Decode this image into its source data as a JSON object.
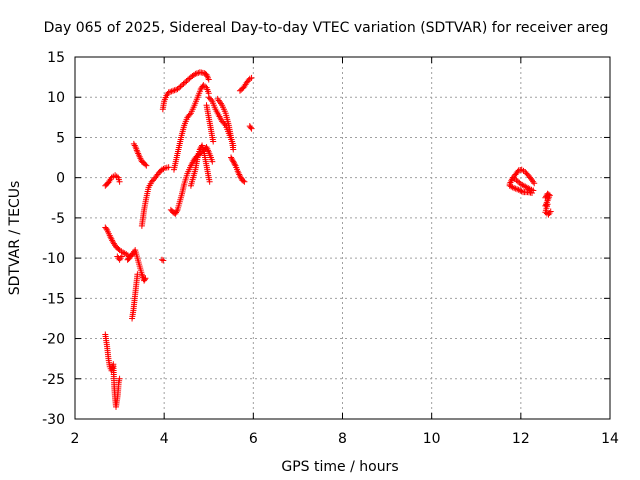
{
  "chart_data": {
    "type": "scatter",
    "title": "Day 065 of 2025, Sidereal Day-to-day VTEC variation (SDTVAR) for receiver areg",
    "xlabel": "GPS time / hours",
    "ylabel": "SDTVAR / TECUs",
    "xlim": [
      2,
      14
    ],
    "ylim": [
      -30,
      15
    ],
    "xticks": [
      "2",
      "4",
      "6",
      "8",
      "10",
      "12",
      "14"
    ],
    "yticks": [
      "15",
      "10",
      "5",
      "0",
      "-5",
      "-10",
      "-15",
      "-20",
      "-25",
      "-30"
    ],
    "grid": true,
    "marker": "plus",
    "color": "#ff0000",
    "segments": [
      {
        "points": [
          [
            2.68,
            -1.0
          ],
          [
            2.75,
            -0.6
          ],
          [
            2.82,
            0.0
          ],
          [
            2.9,
            0.3
          ],
          [
            2.97,
            0.0
          ],
          [
            3.0,
            -0.5
          ]
        ]
      },
      {
        "points": [
          [
            2.68,
            -6.2
          ],
          [
            2.72,
            -6.5
          ],
          [
            2.78,
            -7.2
          ],
          [
            2.85,
            -8.0
          ],
          [
            2.92,
            -8.6
          ],
          [
            3.0,
            -9.0
          ],
          [
            3.08,
            -9.3
          ],
          [
            3.15,
            -9.5
          ],
          [
            3.22,
            -9.8
          ],
          [
            3.28,
            -9.6
          ]
        ]
      },
      {
        "points": [
          [
            2.95,
            -9.8
          ],
          [
            3.0,
            -10.2
          ],
          [
            3.05,
            -9.8
          ]
        ]
      },
      {
        "points": [
          [
            2.68,
            -19.5
          ],
          [
            2.72,
            -21.0
          ],
          [
            2.75,
            -22.5
          ],
          [
            2.78,
            -23.5
          ],
          [
            2.82,
            -24.0
          ],
          [
            2.86,
            -23.2
          ],
          [
            2.88,
            -26.0
          ],
          [
            2.9,
            -27.5
          ],
          [
            2.92,
            -28.5
          ],
          [
            2.96,
            -27.0
          ],
          [
            2.98,
            -25.5
          ],
          [
            3.0,
            -25.0
          ]
        ]
      },
      {
        "points": [
          [
            3.18,
            -10.2
          ],
          [
            3.22,
            -10.0
          ],
          [
            3.3,
            -9.4
          ],
          [
            3.35,
            -9.0
          ],
          [
            3.4,
            -10.0
          ],
          [
            3.45,
            -11.0
          ],
          [
            3.5,
            -12.0
          ],
          [
            3.55,
            -12.8
          ],
          [
            3.58,
            -12.5
          ]
        ]
      },
      {
        "points": [
          [
            3.28,
            -17.5
          ],
          [
            3.31,
            -16.5
          ],
          [
            3.34,
            -15.0
          ],
          [
            3.37,
            -13.5
          ],
          [
            3.4,
            -12.0
          ]
        ]
      },
      {
        "points": [
          [
            3.32,
            4.2
          ],
          [
            3.36,
            3.8
          ],
          [
            3.4,
            3.2
          ],
          [
            3.45,
            2.6
          ],
          [
            3.5,
            2.0
          ],
          [
            3.55,
            1.8
          ],
          [
            3.6,
            1.5
          ]
        ]
      },
      {
        "points": [
          [
            3.5,
            -6.0
          ],
          [
            3.55,
            -4.0
          ],
          [
            3.6,
            -2.5
          ],
          [
            3.65,
            -1.2
          ],
          [
            3.72,
            -0.5
          ],
          [
            3.8,
            0.0
          ],
          [
            3.88,
            0.6
          ],
          [
            3.95,
            1.0
          ],
          [
            4.02,
            1.2
          ],
          [
            4.1,
            1.3
          ]
        ]
      },
      {
        "points": [
          [
            3.95,
            -10.2
          ],
          [
            3.98,
            -10.3
          ]
        ]
      },
      {
        "points": [
          [
            3.97,
            8.5
          ],
          [
            4.0,
            9.5
          ],
          [
            4.05,
            10.2
          ],
          [
            4.1,
            10.6
          ],
          [
            4.2,
            10.8
          ],
          [
            4.3,
            11.0
          ],
          [
            4.4,
            11.5
          ],
          [
            4.5,
            12.0
          ],
          [
            4.6,
            12.5
          ],
          [
            4.7,
            12.9
          ],
          [
            4.8,
            13.1
          ],
          [
            4.9,
            13.0
          ],
          [
            4.95,
            12.8
          ],
          [
            5.0,
            12.2
          ]
        ]
      },
      {
        "points": [
          [
            4.15,
            -4.0
          ],
          [
            4.2,
            -4.3
          ],
          [
            4.25,
            -4.5
          ],
          [
            4.3,
            -4.0
          ],
          [
            4.35,
            -3.0
          ],
          [
            4.4,
            -2.0
          ],
          [
            4.45,
            -0.8
          ],
          [
            4.52,
            0.5
          ],
          [
            4.6,
            1.5
          ],
          [
            4.68,
            2.3
          ],
          [
            4.75,
            2.8
          ],
          [
            4.82,
            3.0
          ],
          [
            4.9,
            3.5
          ],
          [
            4.95,
            3.8
          ],
          [
            5.0,
            3.2
          ],
          [
            5.05,
            2.5
          ],
          [
            5.08,
            2.0
          ]
        ]
      },
      {
        "points": [
          [
            4.22,
            1.0
          ],
          [
            4.3,
            3.0
          ],
          [
            4.38,
            5.0
          ],
          [
            4.45,
            6.5
          ],
          [
            4.52,
            7.5
          ],
          [
            4.6,
            8.0
          ],
          [
            4.68,
            9.0
          ],
          [
            4.75,
            10.0
          ],
          [
            4.82,
            11.0
          ],
          [
            4.88,
            11.5
          ],
          [
            4.95,
            11.2
          ],
          [
            5.0,
            10.5
          ]
        ]
      },
      {
        "points": [
          [
            4.95,
            9.0
          ],
          [
            5.0,
            7.5
          ],
          [
            5.05,
            6.0
          ],
          [
            5.08,
            5.0
          ],
          [
            5.1,
            4.5
          ]
        ]
      },
      {
        "points": [
          [
            4.6,
            -1.0
          ],
          [
            4.65,
            0.0
          ],
          [
            4.7,
            1.0
          ],
          [
            4.75,
            2.5
          ],
          [
            4.8,
            3.5
          ],
          [
            4.85,
            4.0
          ],
          [
            4.9,
            3.0
          ],
          [
            4.95,
            1.5
          ],
          [
            5.0,
            0.0
          ],
          [
            5.02,
            -0.5
          ]
        ]
      },
      {
        "points": [
          [
            5.0,
            10.0
          ],
          [
            5.08,
            9.5
          ],
          [
            5.15,
            8.5
          ],
          [
            5.22,
            7.8
          ],
          [
            5.3,
            7.0
          ],
          [
            5.38,
            6.5
          ],
          [
            5.45,
            5.5
          ],
          [
            5.52,
            4.5
          ],
          [
            5.55,
            3.5
          ]
        ]
      },
      {
        "points": [
          [
            5.2,
            9.8
          ],
          [
            5.3,
            9.0
          ],
          [
            5.38,
            8.0
          ],
          [
            5.45,
            6.5
          ],
          [
            5.5,
            5.0
          ],
          [
            5.55,
            4.0
          ]
        ]
      },
      {
        "points": [
          [
            5.5,
            2.5
          ],
          [
            5.55,
            2.0
          ],
          [
            5.6,
            1.5
          ],
          [
            5.65,
            0.8
          ],
          [
            5.7,
            0.2
          ],
          [
            5.75,
            -0.3
          ],
          [
            5.8,
            -0.5
          ]
        ]
      },
      {
        "points": [
          [
            5.7,
            10.8
          ],
          [
            5.78,
            11.2
          ],
          [
            5.85,
            11.8
          ],
          [
            5.92,
            12.3
          ],
          [
            5.96,
            12.4
          ]
        ]
      },
      {
        "points": [
          [
            5.92,
            6.4
          ],
          [
            5.96,
            6.1
          ]
        ]
      },
      {
        "points": [
          [
            11.75,
            -0.8
          ],
          [
            11.8,
            -0.2
          ],
          [
            11.88,
            0.4
          ],
          [
            11.95,
            0.9
          ],
          [
            12.02,
            1.0
          ],
          [
            12.1,
            0.7
          ],
          [
            12.18,
            0.2
          ],
          [
            12.25,
            -0.3
          ],
          [
            12.3,
            -0.7
          ]
        ]
      },
      {
        "points": [
          [
            11.75,
            -1.0
          ],
          [
            11.85,
            -1.3
          ],
          [
            11.95,
            -1.5
          ],
          [
            12.05,
            -1.8
          ],
          [
            12.15,
            -1.8
          ],
          [
            12.25,
            -1.9
          ]
        ]
      },
      {
        "points": [
          [
            11.82,
            0.0
          ],
          [
            11.9,
            -0.3
          ],
          [
            12.0,
            -0.8
          ],
          [
            12.1,
            -1.1
          ],
          [
            12.2,
            -1.4
          ],
          [
            12.28,
            -1.6
          ]
        ]
      },
      {
        "points": [
          [
            12.55,
            -2.5
          ],
          [
            12.6,
            -2.0
          ],
          [
            12.65,
            -2.2
          ],
          [
            12.55,
            -3.5
          ],
          [
            12.6,
            -3.3
          ],
          [
            12.55,
            -4.3
          ],
          [
            12.62,
            -4.6
          ],
          [
            12.67,
            -4.2
          ]
        ]
      }
    ]
  }
}
